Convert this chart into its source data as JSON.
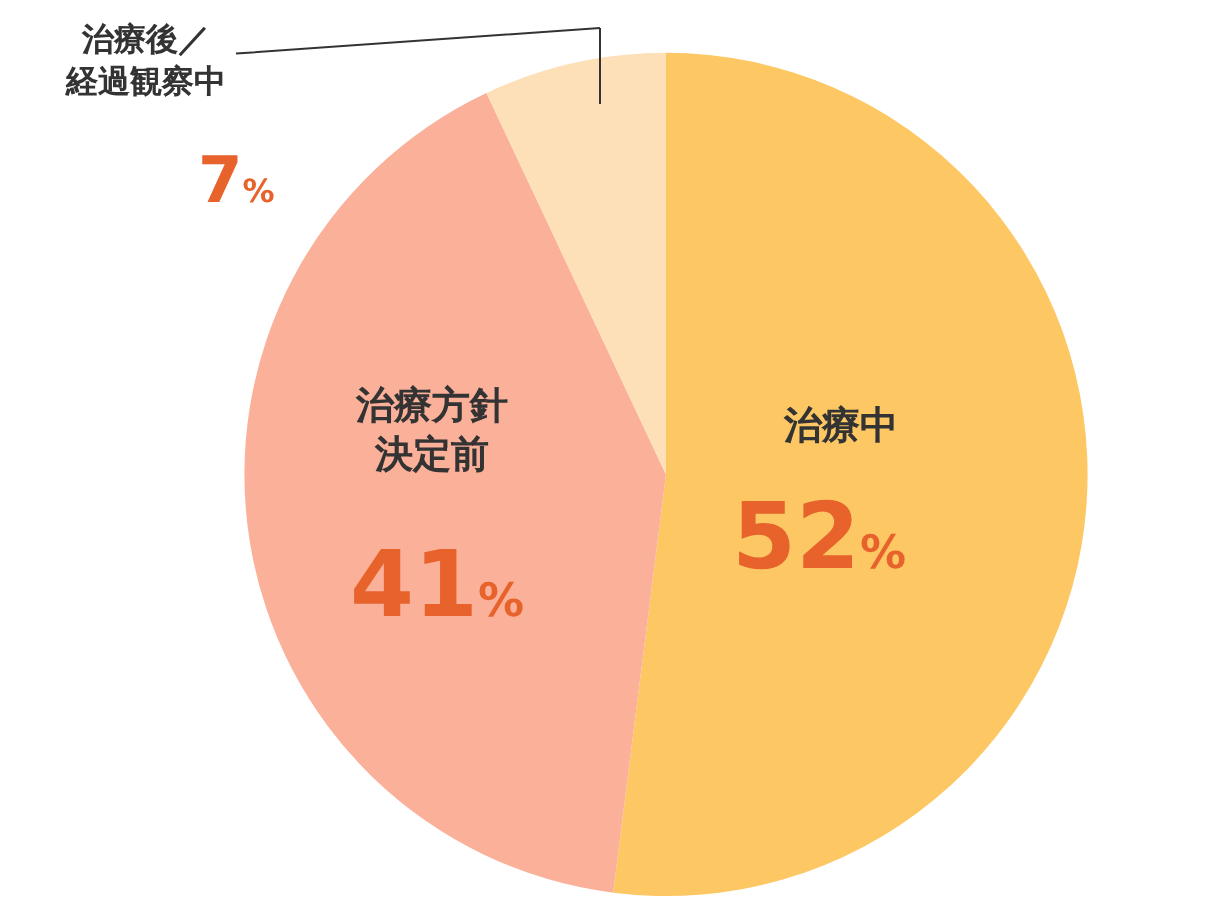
{
  "chart_data": {
    "type": "pie",
    "categories": [
      "治療中",
      "治療方針決定前",
      "治療後／経過観察中"
    ],
    "values": [
      52,
      41,
      7
    ],
    "value_labels": [
      "52%",
      "41%",
      "7%"
    ],
    "colors": [
      "#fdc864",
      "#fbb09a",
      "#fde0b8"
    ]
  }
}
